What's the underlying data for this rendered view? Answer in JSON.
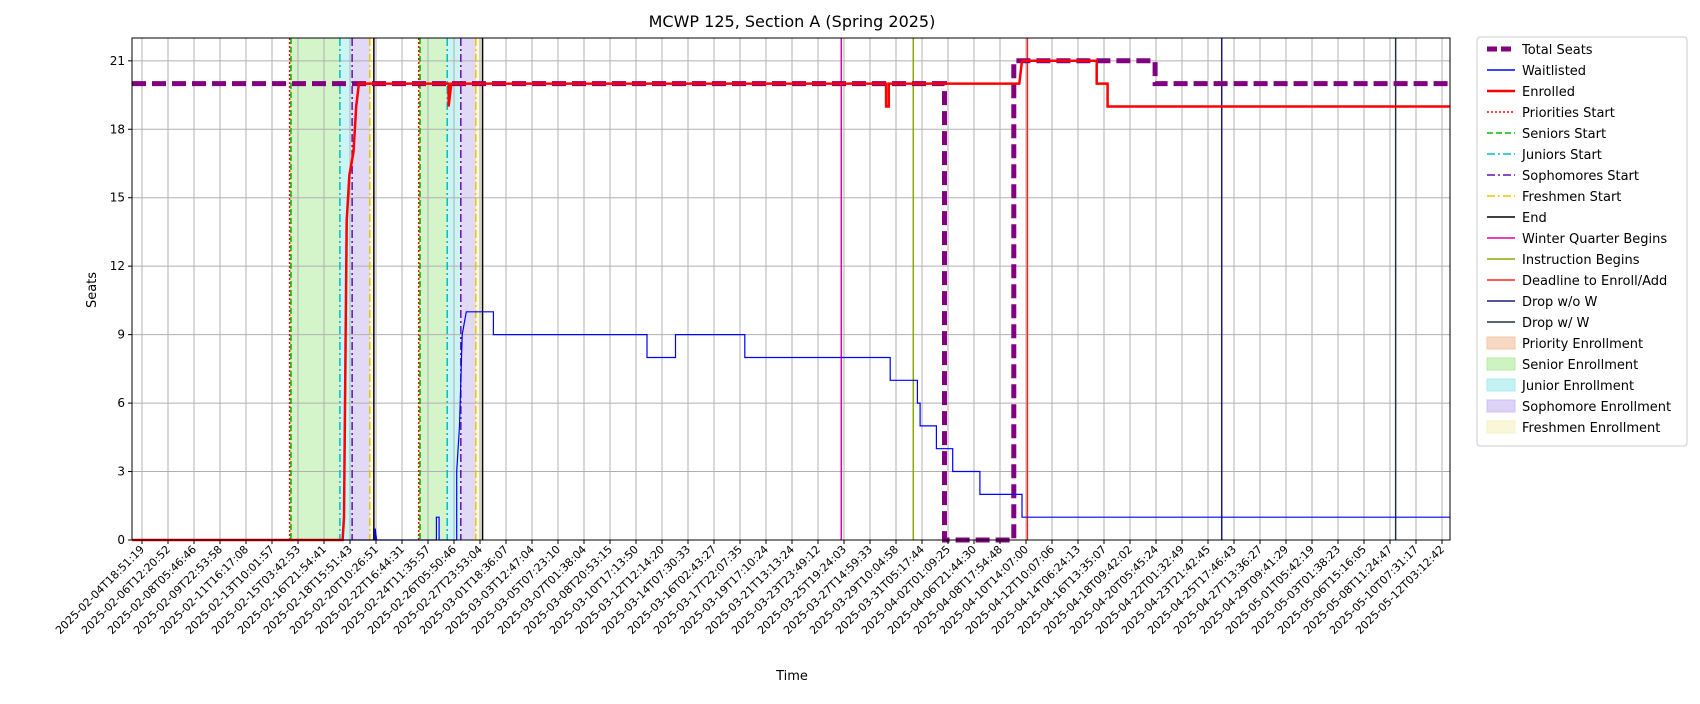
{
  "chart_data": {
    "type": "line",
    "title": "MCWP 125, Section A (Spring 2025)",
    "xlabel": "Time",
    "ylabel": "Seats",
    "ylim": [
      0,
      22
    ],
    "yticks": [
      0,
      3,
      6,
      9,
      12,
      15,
      18,
      21
    ],
    "xlim": [
      0,
      97
    ],
    "grid": true,
    "legend_position": "outside-right",
    "x_tick_labels": [
      "2025-02-04T18:51:19",
      "2025-02-06T12:20:52",
      "2025-02-08T05:46:46",
      "2025-02-09T22:53:58",
      "2025-02-11T16:17:08",
      "2025-02-13T10:01:57",
      "2025-02-15T03:42:53",
      "2025-02-16T21:54:41",
      "2025-02-18T15:51:43",
      "2025-02-20T10:26:51",
      "2025-02-22T16:44:31",
      "2025-02-24T11:35:57",
      "2025-02-26T05:50:46",
      "2025-02-27T23:53:04",
      "2025-03-01T18:36:07",
      "2025-03-03T12:47:04",
      "2025-03-05T07:23:10",
      "2025-03-07T01:38:04",
      "2025-03-08T20:53:15",
      "2025-03-10T17:13:50",
      "2025-03-12T12:14:20",
      "2025-03-14T07:30:33",
      "2025-03-16T02:43:27",
      "2025-03-17T22:07:35",
      "2025-03-19T17:10:24",
      "2025-03-21T13:13:24",
      "2025-03-23T23:49:12",
      "2025-03-25T19:24:03",
      "2025-03-27T14:59:33",
      "2025-03-29T10:04:58",
      "2025-03-31T05:17:44",
      "2025-04-02T01:09:25",
      "2025-04-06T21:44:30",
      "2025-04-08T17:54:48",
      "2025-04-10T14:07:00",
      "2025-04-12T10:07:06",
      "2025-04-14T06:24:13",
      "2025-04-16T13:35:07",
      "2025-04-18T09:42:02",
      "2025-04-20T05:45:24",
      "2025-04-22T01:32:49",
      "2025-04-23T21:42:45",
      "2025-04-25T17:46:43",
      "2025-04-27T13:36:27",
      "2025-04-29T09:41:29",
      "2025-05-01T05:42:19",
      "2025-05-03T01:38:23",
      "2025-05-06T15:16:05",
      "2025-05-08T11:24:47",
      "2025-05-10T07:31:17",
      "2025-05-12T03:12:42"
    ],
    "series": [
      {
        "name": "Total Seats",
        "color": "#800080",
        "style": "dashed-thick",
        "points": [
          [
            0,
            20
          ],
          [
            59.8,
            20
          ],
          [
            59.8,
            0
          ],
          [
            64.9,
            0
          ],
          [
            64.9,
            21
          ],
          [
            75.3,
            21
          ],
          [
            75.3,
            20
          ],
          [
            97,
            20
          ]
        ]
      },
      {
        "name": "Waitlisted",
        "color": "#0000ff",
        "style": "solid-thin",
        "points": [
          [
            0,
            0
          ],
          [
            17.9,
            0
          ],
          [
            17.9,
            0.5
          ],
          [
            18,
            0
          ],
          [
            22.4,
            0
          ],
          [
            22.4,
            1
          ],
          [
            22.6,
            1
          ],
          [
            22.6,
            0
          ],
          [
            23.9,
            0
          ],
          [
            23.9,
            3
          ],
          [
            24.1,
            5
          ],
          [
            24.3,
            9
          ],
          [
            24.6,
            10
          ],
          [
            26.6,
            10
          ],
          [
            26.6,
            9
          ],
          [
            37.9,
            9
          ],
          [
            37.9,
            8
          ],
          [
            40,
            8
          ],
          [
            40,
            9
          ],
          [
            45.1,
            9
          ],
          [
            45.1,
            8
          ],
          [
            55.8,
            8
          ],
          [
            55.8,
            7
          ],
          [
            57.8,
            7
          ],
          [
            57.8,
            6
          ],
          [
            58,
            6
          ],
          [
            58,
            5
          ],
          [
            59.2,
            5
          ],
          [
            59.2,
            4
          ],
          [
            60.4,
            4
          ],
          [
            60.4,
            3
          ],
          [
            62.4,
            3
          ],
          [
            62.4,
            2
          ],
          [
            65.5,
            2
          ],
          [
            65.5,
            1
          ],
          [
            97,
            1
          ]
        ]
      },
      {
        "name": "Enrolled",
        "color": "#ff0000",
        "style": "solid-thick",
        "points": [
          [
            0,
            0
          ],
          [
            15.5,
            0
          ],
          [
            15.6,
            1
          ],
          [
            15.8,
            14
          ],
          [
            16,
            16
          ],
          [
            16.3,
            17
          ],
          [
            16.5,
            19
          ],
          [
            16.7,
            20
          ],
          [
            23.3,
            20
          ],
          [
            23.3,
            19
          ],
          [
            23.5,
            20
          ],
          [
            55.5,
            20
          ],
          [
            55.5,
            19
          ],
          [
            55.7,
            19
          ],
          [
            55.7,
            20
          ],
          [
            65.3,
            20
          ],
          [
            65.5,
            21
          ],
          [
            71,
            21
          ],
          [
            71,
            20
          ],
          [
            71.8,
            20
          ],
          [
            71.8,
            19
          ],
          [
            97,
            19
          ]
        ]
      }
    ],
    "vertical_markers": [
      {
        "label": "Priorities Start",
        "color": "#ff0000",
        "style": "dotted",
        "x": [
          11.6,
          21.1
        ]
      },
      {
        "label": "Seniors Start",
        "color": "#00bb00",
        "style": "dashed",
        "x": [
          11.7,
          21.2
        ]
      },
      {
        "label": "Juniors Start",
        "color": "#00bfbf",
        "style": "dashdot",
        "x": [
          15.3,
          23.2
        ]
      },
      {
        "label": "Sophomores Start",
        "color": "#6a0dad",
        "style": "dashdot",
        "x": [
          16.2,
          24.2
        ]
      },
      {
        "label": "Freshmen Start",
        "color": "#e6c800",
        "style": "dashdot",
        "x": [
          17.5,
          25.3
        ]
      },
      {
        "label": "End",
        "color": "#000000",
        "style": "solid",
        "x": [
          17.8,
          25.8
        ]
      },
      {
        "label": "Winter Quarter Begins",
        "color": "#e000b0",
        "style": "solid",
        "x": [
          52.2
        ]
      },
      {
        "label": "Instruction Begins",
        "color": "#88aa00",
        "style": "solid",
        "x": [
          57.5
        ]
      },
      {
        "label": "Deadline to Enroll/Add",
        "color": "#ff2222",
        "style": "solid",
        "x": [
          65.9
        ]
      },
      {
        "label": "Drop w/o W",
        "color": "#1a1a80",
        "style": "solid",
        "x": [
          80.2
        ]
      },
      {
        "label": "Drop w/ W",
        "color": "#223344",
        "style": "solid",
        "x": [
          93
        ]
      }
    ],
    "spans": [
      {
        "label": "Priority Enrollment",
        "color": "#f4c7a8",
        "ranges": [
          [
            11.6,
            11.7
          ],
          [
            21.1,
            21.2
          ]
        ]
      },
      {
        "label": "Senior Enrollment",
        "color": "#b7eea6",
        "ranges": [
          [
            11.7,
            15.3
          ],
          [
            21.2,
            23.2
          ]
        ]
      },
      {
        "label": "Junior Enrollment",
        "color": "#a8ecec",
        "ranges": [
          [
            15.3,
            16.2
          ],
          [
            23.2,
            24.2
          ]
        ]
      },
      {
        "label": "Sophomore Enrollment",
        "color": "#cfc0f2",
        "ranges": [
          [
            16.2,
            17.5
          ],
          [
            24.2,
            25.3
          ]
        ]
      },
      {
        "label": "Freshmen Enrollment",
        "color": "#f6f3c6",
        "ranges": [
          [
            17.5,
            17.8
          ],
          [
            25.3,
            25.8
          ]
        ]
      }
    ]
  }
}
